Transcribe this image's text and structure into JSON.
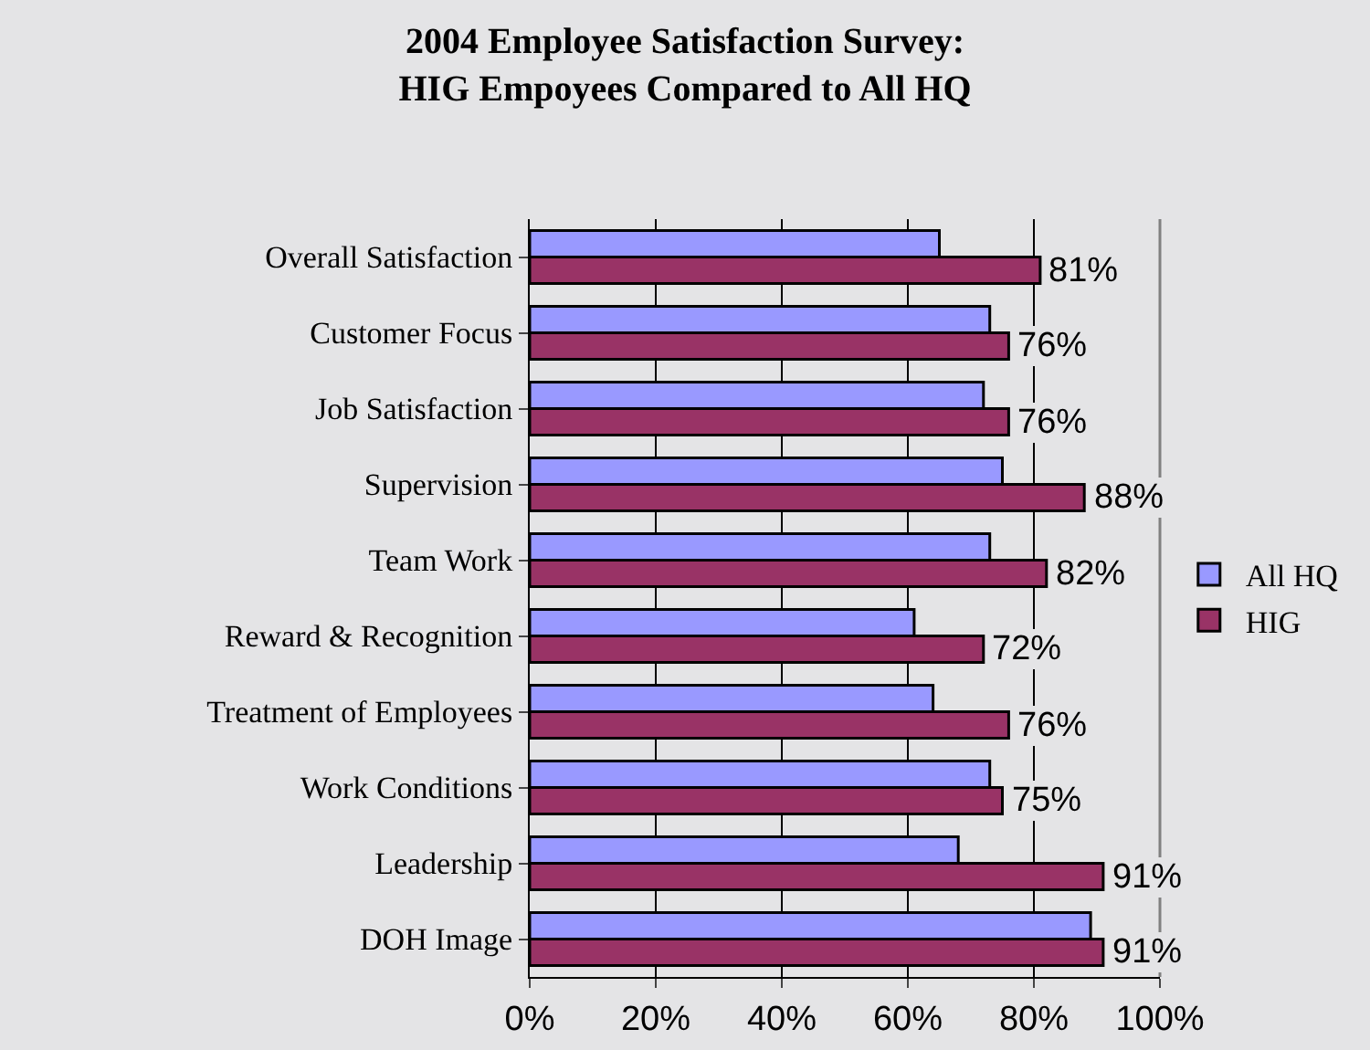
{
  "chart_data": {
    "type": "bar",
    "orientation": "horizontal",
    "title": "2004 Employee Satisfaction Survey:\nHIG Empoyees Compared to All HQ",
    "categories": [
      "Overall Satisfaction",
      "Customer Focus",
      "Job Satisfaction",
      "Supervision",
      "Team Work",
      "Reward & Recognition",
      "Treatment of Employees",
      "Work Conditions",
      "Leadership",
      "DOH Image"
    ],
    "series": [
      {
        "name": "All HQ",
        "color": "#9999ff",
        "values": [
          65,
          73,
          72,
          75,
          73,
          61,
          64,
          73,
          68,
          89
        ]
      },
      {
        "name": "HIG",
        "color": "#993366",
        "values": [
          81,
          76,
          76,
          88,
          82,
          72,
          76,
          75,
          91,
          91
        ],
        "value_labels": [
          "81%",
          "76%",
          "76%",
          "88%",
          "82%",
          "72%",
          "76%",
          "75%",
          "91%",
          "91%"
        ]
      }
    ],
    "xlim": [
      0,
      100
    ],
    "xticks": [
      {
        "value": 0,
        "label": "0%"
      },
      {
        "value": 20,
        "label": "20%"
      },
      {
        "value": 40,
        "label": "40%"
      },
      {
        "value": 60,
        "label": "60%"
      },
      {
        "value": 80,
        "label": "80%"
      },
      {
        "value": 100,
        "label": "100%"
      }
    ],
    "grid": "x",
    "legend": "right"
  }
}
